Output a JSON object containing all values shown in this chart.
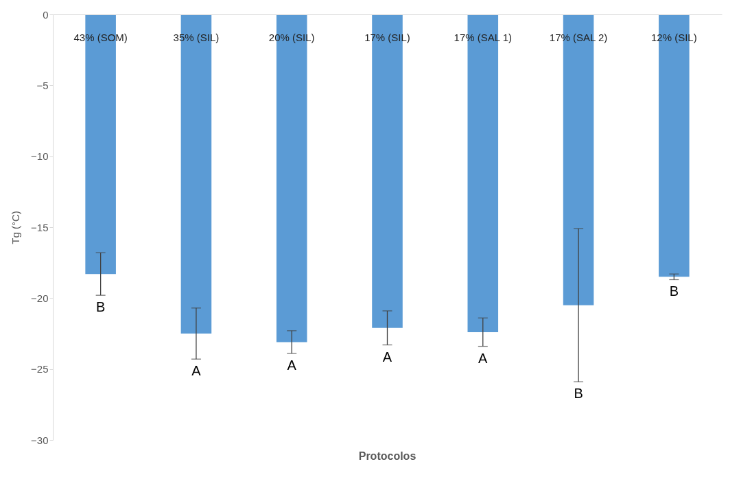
{
  "chart_data": {
    "type": "bar",
    "xlabel": "Protocolos",
    "ylabel": "Tg (°C)",
    "categories": [
      "43% (SOM)",
      "35% (SIL)",
      "20% (SIL)",
      "17% (SIL)",
      "17% (SAL 1)",
      "17% (SAL 2)",
      "12% (SIL)"
    ],
    "values": [
      -18.3,
      -22.5,
      -23.1,
      -22.1,
      -22.4,
      -20.5,
      -18.5
    ],
    "errors": [
      1.5,
      1.8,
      0.8,
      1.2,
      1.0,
      5.4,
      0.2
    ],
    "color": "#5b9bd5",
    "ylim": [
      -30,
      0
    ],
    "yticks": [
      -30,
      -25,
      -20,
      -15,
      -10,
      -5,
      0
    ],
    "grid": false,
    "annotations": [
      "B",
      "A",
      "A",
      "A",
      "A",
      "B",
      "B"
    ]
  }
}
